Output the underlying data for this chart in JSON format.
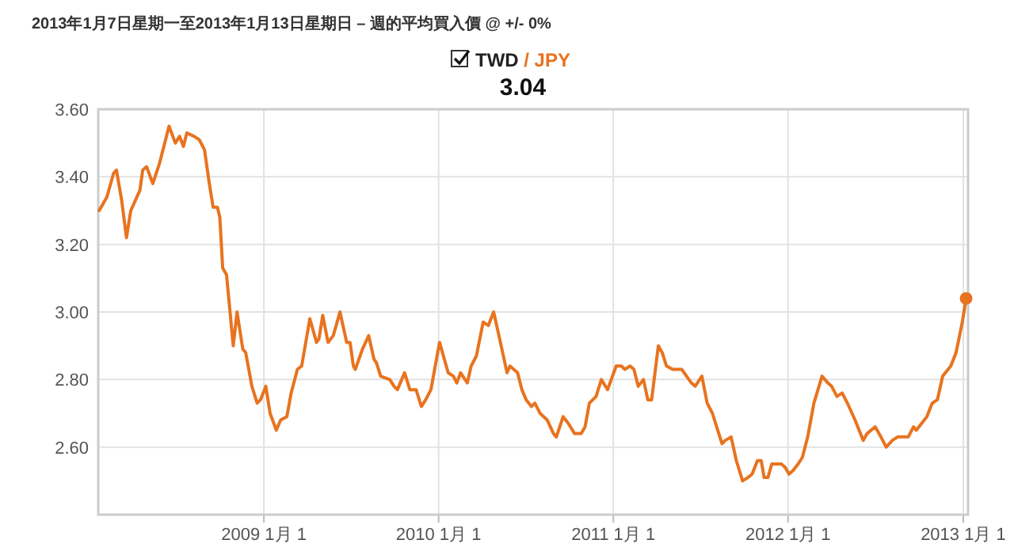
{
  "chart_data": {
    "type": "line",
    "annotations": [
      "2013年1月7日星期一至2013年1月13日星期日 – 週的平均買入價 @ +/- 0%"
    ],
    "title": "TWD / JPY",
    "subtitle": "3.04",
    "x": [
      "2008-01-23",
      "2008-02-08",
      "2008-02-22",
      "2008-02-28",
      "2008-03-10",
      "2008-03-20",
      "2008-03-29",
      "2008-04-17",
      "2008-04-23",
      "2008-05-01",
      "2008-05-14",
      "2008-05-28",
      "2008-06-17",
      "2008-06-30",
      "2008-07-09",
      "2008-07-17",
      "2008-07-24",
      "2008-08-08",
      "2008-08-19",
      "2008-08-30",
      "2008-09-08",
      "2008-09-17",
      "2008-09-26",
      "2008-10-01",
      "2008-10-07",
      "2008-10-15",
      "2008-10-29",
      "2008-11-06",
      "2008-11-18",
      "2008-11-24",
      "2008-12-07",
      "2008-12-18",
      "2008-12-25",
      "2009-01-05",
      "2009-01-14",
      "2009-01-27",
      "2009-02-05",
      "2009-02-18",
      "2009-02-27",
      "2009-03-12",
      "2009-03-21",
      "2009-04-07",
      "2009-04-21",
      "2009-04-26",
      "2009-05-04",
      "2009-05-15",
      "2009-05-26",
      "2009-06-09",
      "2009-06-23",
      "2009-06-30",
      "2009-07-07",
      "2009-07-11",
      "2009-07-26",
      "2009-08-08",
      "2009-08-19",
      "2009-08-24",
      "2009-09-02",
      "2009-09-21",
      "2009-09-30",
      "2009-10-07",
      "2009-10-22",
      "2009-11-02",
      "2009-11-15",
      "2009-11-26",
      "2009-12-05",
      "2009-12-16",
      "2010-01-03",
      "2010-01-21",
      "2010-02-01",
      "2010-02-08",
      "2010-02-16",
      "2010-03-02",
      "2010-03-10",
      "2010-03-21",
      "2010-04-04",
      "2010-04-15",
      "2010-04-26",
      "2010-05-07",
      "2010-05-24",
      "2010-05-30",
      "2010-06-15",
      "2010-06-24",
      "2010-07-03",
      "2010-07-14",
      "2010-07-21",
      "2010-08-01",
      "2010-08-16",
      "2010-08-29",
      "2010-09-04",
      "2010-09-18",
      "2010-09-29",
      "2010-10-12",
      "2010-10-26",
      "2010-11-03",
      "2010-11-12",
      "2010-11-26",
      "2010-12-07",
      "2010-12-20",
      "2011-01-07",
      "2011-01-18",
      "2011-01-25",
      "2011-02-05",
      "2011-02-13",
      "2011-02-22",
      "2011-03-05",
      "2011-03-14",
      "2011-03-22",
      "2011-04-05",
      "2011-04-13",
      "2011-04-22",
      "2011-05-05",
      "2011-05-24",
      "2011-06-13",
      "2011-06-21",
      "2011-07-05",
      "2011-07-16",
      "2011-07-27",
      "2011-08-16",
      "2011-08-23",
      "2011-09-04",
      "2011-09-15",
      "2011-09-28",
      "2011-10-09",
      "2011-10-18",
      "2011-10-29",
      "2011-11-06",
      "2011-11-12",
      "2011-11-20",
      "2011-11-28",
      "2011-12-18",
      "2011-12-26",
      "2012-01-03",
      "2012-01-11",
      "2012-01-22",
      "2012-01-31",
      "2012-02-11",
      "2012-02-24",
      "2012-03-12",
      "2012-03-24",
      "2012-04-01",
      "2012-04-12",
      "2012-04-23",
      "2012-05-04",
      "2012-05-20",
      "2012-06-06",
      "2012-06-14",
      "2012-07-01",
      "2012-07-13",
      "2012-07-24",
      "2012-08-06",
      "2012-08-17",
      "2012-08-30",
      "2012-09-08",
      "2012-09-19",
      "2012-09-25",
      "2012-10-06",
      "2012-10-17",
      "2012-10-28",
      "2012-11-08",
      "2012-11-19",
      "2012-12-06",
      "2012-12-17",
      "2012-12-30",
      "2013-01-07"
    ],
    "series": [
      {
        "color": "#e8731f",
        "values": [
          3.3,
          3.34,
          3.41,
          3.42,
          3.33,
          3.22,
          3.3,
          3.36,
          3.42,
          3.43,
          3.38,
          3.44,
          3.55,
          3.5,
          3.52,
          3.49,
          3.53,
          3.52,
          3.51,
          3.48,
          3.39,
          3.31,
          3.31,
          3.28,
          3.13,
          3.11,
          2.9,
          3.0,
          2.89,
          2.88,
          2.78,
          2.73,
          2.74,
          2.78,
          2.7,
          2.65,
          2.68,
          2.69,
          2.76,
          2.83,
          2.84,
          2.98,
          2.91,
          2.92,
          2.99,
          2.91,
          2.93,
          3.0,
          2.91,
          2.91,
          2.84,
          2.83,
          2.89,
          2.93,
          2.86,
          2.85,
          2.81,
          2.8,
          2.78,
          2.77,
          2.82,
          2.77,
          2.77,
          2.72,
          2.74,
          2.77,
          2.91,
          2.82,
          2.81,
          2.79,
          2.82,
          2.79,
          2.84,
          2.87,
          2.97,
          2.96,
          3.0,
          2.93,
          2.82,
          2.84,
          2.82,
          2.77,
          2.74,
          2.72,
          2.73,
          2.7,
          2.68,
          2.64,
          2.63,
          2.69,
          2.67,
          2.64,
          2.64,
          2.66,
          2.73,
          2.75,
          2.8,
          2.77,
          2.84,
          2.84,
          2.83,
          2.84,
          2.83,
          2.78,
          2.8,
          2.74,
          2.74,
          2.9,
          2.88,
          2.84,
          2.83,
          2.83,
          2.79,
          2.78,
          2.81,
          2.73,
          2.7,
          2.61,
          2.62,
          2.63,
          2.56,
          2.5,
          2.51,
          2.52,
          2.56,
          2.56,
          2.51,
          2.51,
          2.55,
          2.55,
          2.54,
          2.52,
          2.53,
          2.55,
          2.57,
          2.63,
          2.73,
          2.81,
          2.79,
          2.78,
          2.75,
          2.76,
          2.73,
          2.68,
          2.62,
          2.64,
          2.66,
          2.63,
          2.6,
          2.62,
          2.63,
          2.63,
          2.63,
          2.66,
          2.65,
          2.67,
          2.69,
          2.73,
          2.74,
          2.81,
          2.84,
          2.88,
          2.97,
          3.04
        ]
      },
      {
        "type": "scatter",
        "marker": "circle",
        "color": "#e8731f",
        "x": [
          "2013-01-07"
        ],
        "values": [
          3.04
        ]
      }
    ],
    "xlim": [
      "2008-01-21",
      "2013-01-11"
    ],
    "xticks": [
      {
        "value": "2009-01-01",
        "label": "2009 1月 1"
      },
      {
        "value": "2010-01-01",
        "label": "2010 1月 1"
      },
      {
        "value": "2011-01-01",
        "label": "2011 1月 1"
      },
      {
        "value": "2012-01-01",
        "label": "2012 1月 1"
      },
      {
        "value": "2013-01-01",
        "label": "2013 1月 1"
      }
    ],
    "ylim": [
      2.4,
      3.6
    ],
    "yticks": [
      {
        "value": 2.6,
        "label": "2.60"
      },
      {
        "value": 2.8,
        "label": "2.80"
      },
      {
        "value": 3.0,
        "label": "3.00"
      },
      {
        "value": 3.2,
        "label": "3.20"
      },
      {
        "value": 3.4,
        "label": "3.40"
      },
      {
        "value": 3.6,
        "label": "3.60"
      }
    ],
    "grid": true,
    "marker": "none",
    "line_style": "solid"
  }
}
